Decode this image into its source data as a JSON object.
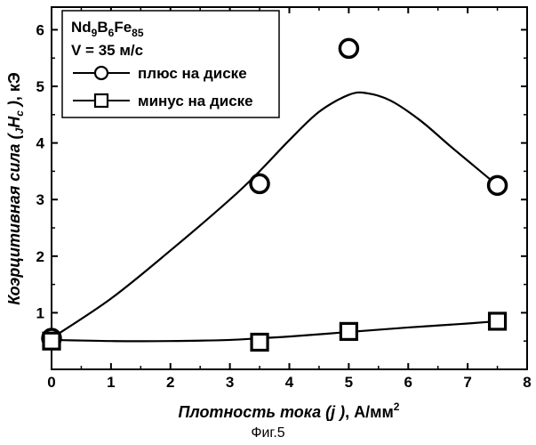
{
  "chart_data": {
    "type": "scatter",
    "xlabel": {
      "italic": "Плотность тока (",
      "var": "j",
      "italic2": " )",
      "unit": ", А/мм",
      "unit_sup": "2"
    },
    "ylabel": {
      "italic": "Коэрцитивная сила (",
      "sub_pre": "J",
      "var": "H",
      "sub": "c",
      "italic2": " )",
      "unit": ", кЭ"
    },
    "xlim": [
      0,
      8
    ],
    "ylim": [
      0,
      6.4
    ],
    "xticks": [
      0,
      1,
      2,
      3,
      4,
      5,
      6,
      7,
      8
    ],
    "yticks": [
      1,
      2,
      3,
      4,
      5,
      6
    ],
    "legend": {
      "placement": "top-left",
      "composition": {
        "el1": "Nd",
        "n1": "9",
        "el2": "B",
        "n2": "6",
        "el3": "Fe",
        "n3": "85"
      },
      "speed": "V = 35 м/с"
    },
    "series": [
      {
        "name": "плюс на диске",
        "marker": "circle",
        "points": [
          [
            0,
            0.55
          ],
          [
            3.5,
            3.28
          ],
          [
            5,
            5.67
          ],
          [
            7.5,
            3.25
          ]
        ],
        "fit_curve": [
          [
            0,
            0.55
          ],
          [
            1,
            1.25
          ],
          [
            2,
            2.1
          ],
          [
            3,
            3.0
          ],
          [
            3.5,
            3.5
          ],
          [
            4,
            4.05
          ],
          [
            4.5,
            4.55
          ],
          [
            5,
            4.85
          ],
          [
            5.3,
            4.88
          ],
          [
            5.7,
            4.75
          ],
          [
            6.2,
            4.4
          ],
          [
            6.7,
            3.95
          ],
          [
            7.1,
            3.6
          ],
          [
            7.5,
            3.25
          ]
        ]
      },
      {
        "name": "минус на диске",
        "marker": "square",
        "points": [
          [
            0,
            0.5
          ],
          [
            3.5,
            0.48
          ],
          [
            5,
            0.67
          ],
          [
            7.5,
            0.85
          ]
        ],
        "fit_curve": [
          [
            0,
            0.52
          ],
          [
            1,
            0.5
          ],
          [
            2,
            0.5
          ],
          [
            3,
            0.52
          ],
          [
            3.5,
            0.55
          ],
          [
            4,
            0.58
          ],
          [
            5,
            0.66
          ],
          [
            6,
            0.74
          ],
          [
            7,
            0.81
          ],
          [
            7.5,
            0.85
          ]
        ]
      }
    ]
  },
  "caption": "Фиг.5"
}
